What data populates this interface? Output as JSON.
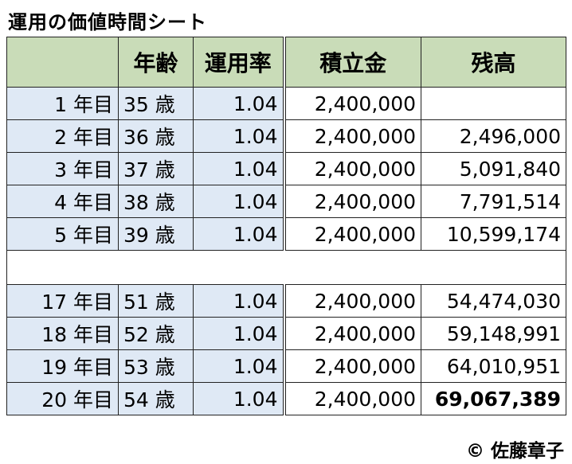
{
  "title": "運用の価値時間シート",
  "headers": {
    "col0": "",
    "col1": "年齢",
    "col2": "運用率",
    "col3": "積立金",
    "col4": "残高"
  },
  "rows_top": [
    {
      "year": "1 年目",
      "age": "35 歳",
      "rate": "1.04",
      "deposit": "2,400,000",
      "balance": ""
    },
    {
      "year": "2 年目",
      "age": "36 歳",
      "rate": "1.04",
      "deposit": "2,400,000",
      "balance": "2,496,000"
    },
    {
      "year": "3 年目",
      "age": "37 歳",
      "rate": "1.04",
      "deposit": "2,400,000",
      "balance": "5,091,840"
    },
    {
      "year": "4 年目",
      "age": "38 歳",
      "rate": "1.04",
      "deposit": "2,400,000",
      "balance": "7,791,514"
    },
    {
      "year": "5 年目",
      "age": "39 歳",
      "rate": "1.04",
      "deposit": "2,400,000",
      "balance": "10,599,174"
    }
  ],
  "rows_bottom": [
    {
      "year": "17 年目",
      "age": "51 歳",
      "rate": "1.04",
      "deposit": "2,400,000",
      "balance": "54,474,030"
    },
    {
      "year": "18 年目",
      "age": "52 歳",
      "rate": "1.04",
      "deposit": "2,400,000",
      "balance": "59,148,991"
    },
    {
      "year": "19 年目",
      "age": "53 歳",
      "rate": "1.04",
      "deposit": "2,400,000",
      "balance": "64,010,951"
    },
    {
      "year": "20 年目",
      "age": "54 歳",
      "rate": "1.04",
      "deposit": "2,400,000",
      "balance": "69,067,389"
    }
  ],
  "copyright": "© 佐藤章子",
  "colors": {
    "header_bg": "#c9dcb8",
    "blue_cell_bg": "#dfe9f5"
  }
}
